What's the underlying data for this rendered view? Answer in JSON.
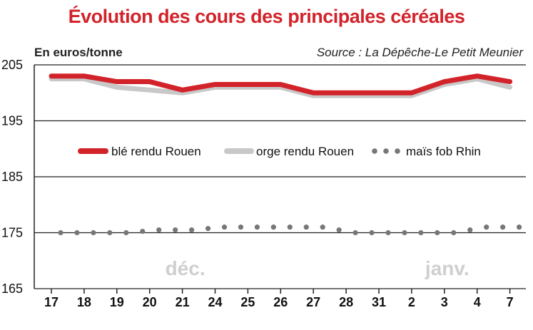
{
  "colors": {
    "ble": "#d2232a",
    "orge": "#c8c8c8",
    "mais": "#777777",
    "grid": "#222222",
    "month": "#cfcfcf"
  },
  "chart_data": {
    "type": "line",
    "title": "Évolution des cours des principales céréales",
    "unit_label": "En euros/tonne",
    "source": "Source : La Dépêche-Le Petit Meunier",
    "categories": [
      "17",
      "18",
      "19",
      "20",
      "21",
      "24",
      "25",
      "26",
      "27",
      "28",
      "31",
      "2",
      "3",
      "4",
      "7"
    ],
    "month_labels": [
      {
        "text": "déc.",
        "at_category": "21"
      },
      {
        "text": "janv.",
        "at_category": "3"
      }
    ],
    "y_ticks": [
      165,
      175,
      185,
      195,
      205
    ],
    "ylim": [
      165,
      205
    ],
    "grid": true,
    "legend_position": "center",
    "series": [
      {
        "name": "blé rendu Rouen",
        "style": "thick-line",
        "values": [
          203,
          203,
          202,
          202,
          200.5,
          201.5,
          201.5,
          201.5,
          200,
          200,
          200,
          200,
          202,
          203,
          202
        ]
      },
      {
        "name": "orge rendu Rouen",
        "style": "thick-line",
        "values": [
          202.5,
          202.5,
          201,
          200.5,
          200,
          201,
          201,
          201,
          199.5,
          199.5,
          199.5,
          199.5,
          201.5,
          202.5,
          201
        ]
      },
      {
        "name": "maïs fob Rhin",
        "style": "dotted",
        "values": [
          175,
          175,
          175,
          175.5,
          175.5,
          176,
          176,
          176,
          176,
          175,
          175,
          175,
          175,
          176,
          176
        ]
      }
    ]
  }
}
